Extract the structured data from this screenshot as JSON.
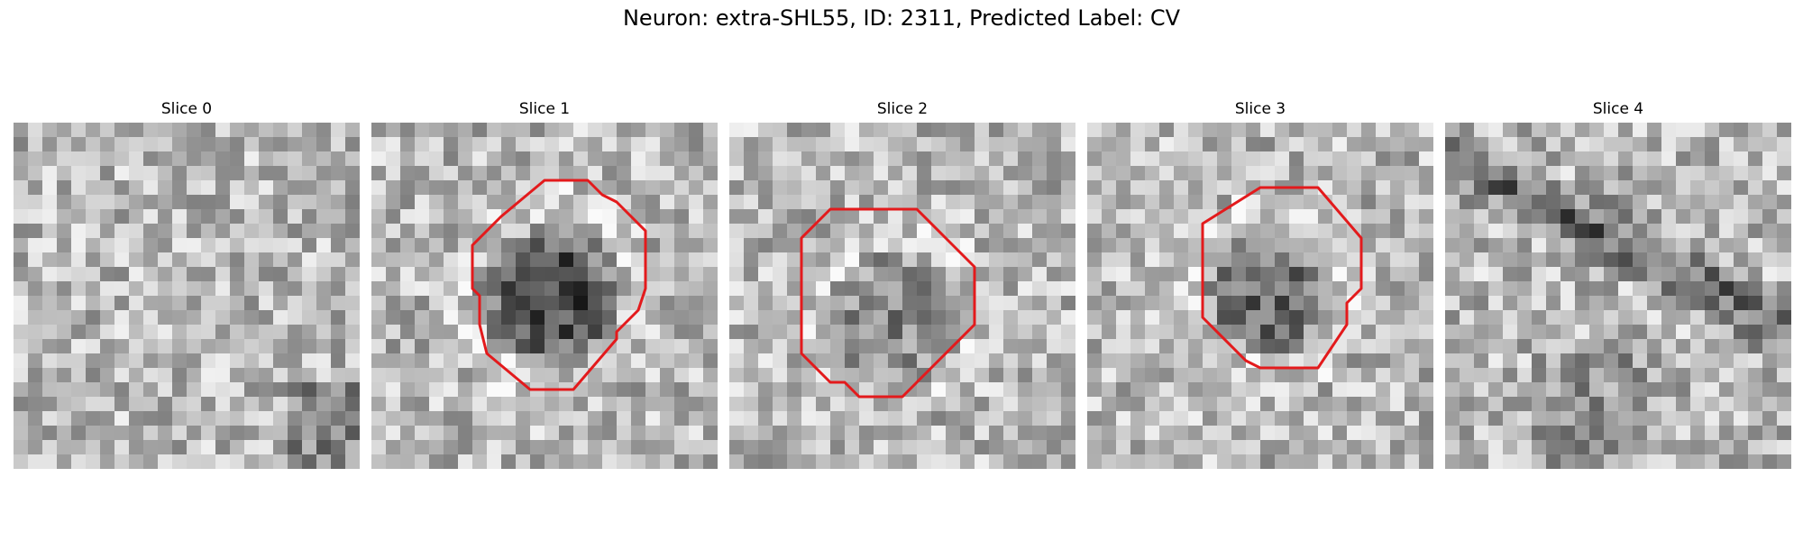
{
  "figure": {
    "title": "Neuron: extra-SHL55, ID: 2311, Predicted Label: CV",
    "contour_color": "#e31a1c",
    "panels": [
      {
        "label": "Slice 0",
        "has_contour": false,
        "dark_blob": "none"
      },
      {
        "label": "Slice 1",
        "has_contour": true,
        "dark_blob": "strong"
      },
      {
        "label": "Slice 2",
        "has_contour": true,
        "dark_blob": "weak"
      },
      {
        "label": "Slice 3",
        "has_contour": true,
        "dark_blob": "medium"
      },
      {
        "label": "Slice 4",
        "has_contour": false,
        "dark_blob": "none"
      }
    ]
  }
}
